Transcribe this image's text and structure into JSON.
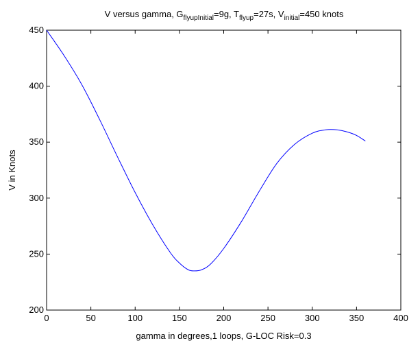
{
  "chart_data": {
    "type": "line",
    "title": {
      "prefix": "V versus gamma, G",
      "g_sub": "flyupInitial",
      "g_val": "=9g, T",
      "t_sub": "flyup",
      "t_val": "=27s, V",
      "v_sub": "initial",
      "v_val": "=450 knots"
    },
    "xlabel": "gamma in degrees,1 loops, G-LOC Risk=0.3",
    "ylabel": "V in Knots",
    "xlim": [
      0,
      400
    ],
    "ylim": [
      200,
      450
    ],
    "xticks": [
      "0",
      "50",
      "100",
      "150",
      "200",
      "250",
      "300",
      "350",
      "400"
    ],
    "yticks": [
      "200",
      "250",
      "300",
      "350",
      "400",
      "450"
    ],
    "grid": false,
    "colors": {
      "line": "#0000ff",
      "axes": "#000000",
      "background": "#ffffff"
    },
    "series": [
      {
        "x": [
          0,
          20,
          40,
          60,
          80,
          100,
          120,
          140,
          150,
          160,
          167,
          175,
          185,
          200,
          220,
          240,
          260,
          280,
          300,
          315,
          328,
          340,
          350,
          360
        ],
        "y": [
          450,
          427,
          401,
          370,
          337,
          305,
          276,
          251,
          242,
          236,
          235,
          236,
          241,
          255,
          279,
          306,
          331,
          348,
          358,
          361,
          361,
          359,
          356,
          351
        ]
      }
    ]
  }
}
